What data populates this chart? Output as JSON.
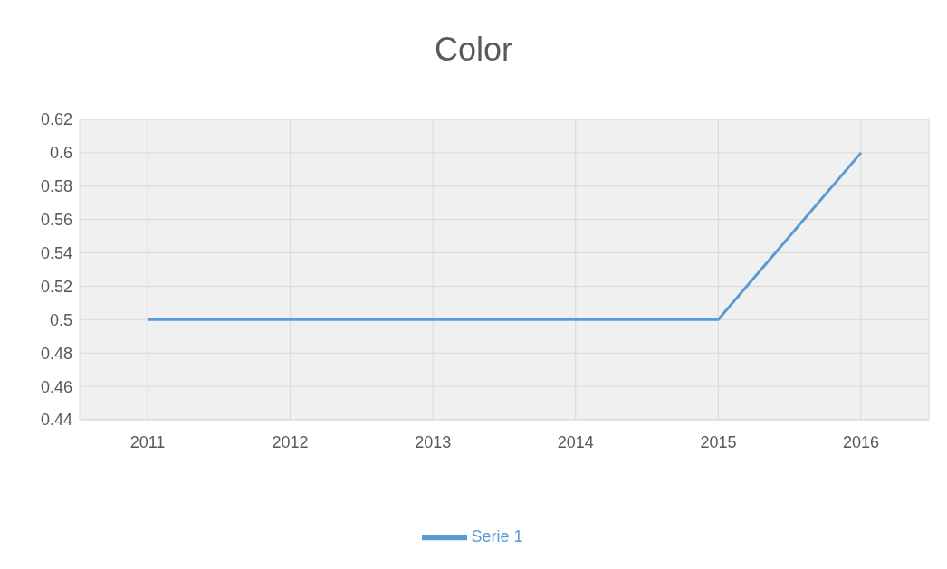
{
  "chart_data": {
    "type": "line",
    "title": "Color",
    "categories": [
      "2011",
      "2012",
      "2013",
      "2014",
      "2015",
      "2016"
    ],
    "series": [
      {
        "name": "Serie 1",
        "color": "#5b9bd5",
        "values": [
          0.5,
          0.5,
          0.5,
          0.5,
          0.5,
          0.6
        ]
      }
    ],
    "ylim": [
      0.44,
      0.62
    ],
    "yticks": [
      0.44,
      0.46,
      0.48,
      0.5,
      0.52,
      0.54,
      0.56,
      0.58,
      0.6,
      0.62
    ],
    "grid": true,
    "legend": "bottom",
    "marker": "none",
    "line_style": "solid"
  }
}
